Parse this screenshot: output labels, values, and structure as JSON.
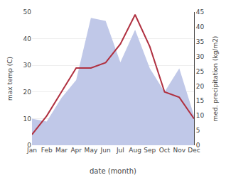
{
  "chart_data": {
    "type": "line",
    "categories": [
      "Jan",
      "Feb",
      "Mar",
      "Apr",
      "May",
      "Jun",
      "Jul",
      "Aug",
      "Sep",
      "Oct",
      "Nov",
      "Dec"
    ],
    "xlabel": "date (month)",
    "ylabel": "max temp (C)",
    "y2label": "med. precipitation (kg/m2)",
    "series": [
      {
        "type": "area",
        "color": "#c0c8e8",
        "axis": "y2",
        "values": [
          9,
          8,
          16,
          22,
          43,
          42,
          28,
          39,
          26,
          18,
          26,
          10
        ]
      },
      {
        "type": "line",
        "color": "#b03040",
        "values": [
          4,
          11,
          20,
          29,
          29,
          31,
          38,
          49,
          37,
          20,
          18,
          10
        ]
      }
    ],
    "ylim": [
      0,
      50
    ],
    "yticks": [
      0,
      10,
      20,
      30,
      40,
      50
    ],
    "y2lim": [
      0,
      45
    ],
    "y2ticks": [
      0,
      5,
      10,
      15,
      20,
      25,
      30,
      35,
      40,
      45
    ],
    "grid": true
  }
}
